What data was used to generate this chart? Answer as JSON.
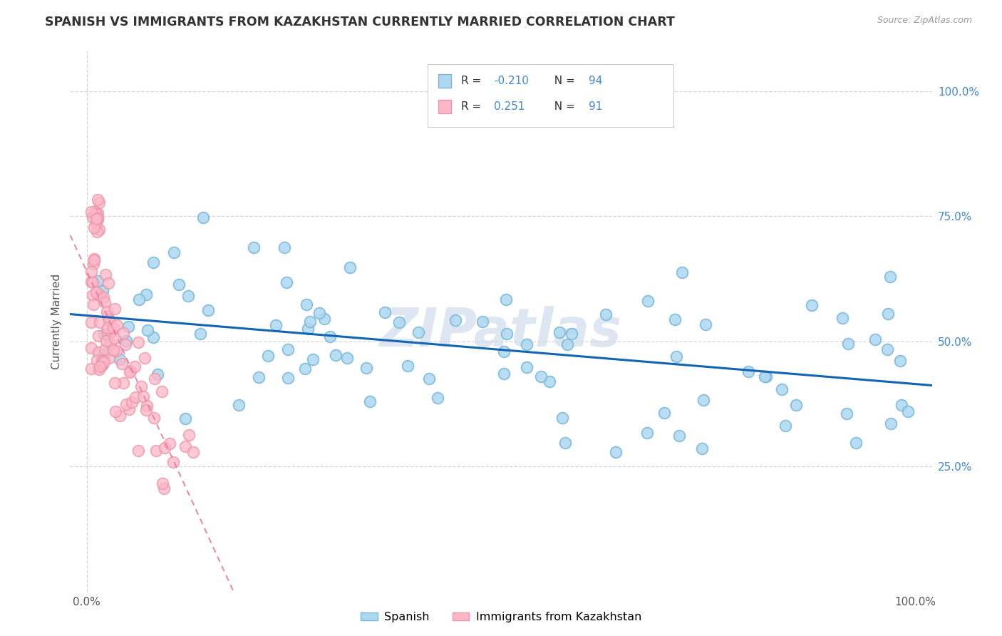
{
  "title": "SPANISH VS IMMIGRANTS FROM KAZAKHSTAN CURRENTLY MARRIED CORRELATION CHART",
  "source": "Source: ZipAtlas.com",
  "ylabel": "Currently Married",
  "watermark": "ZIPatlas",
  "legend_label1": "Spanish",
  "legend_label2": "Immigrants from Kazakhstan",
  "R_blue": -0.21,
  "R_pink": 0.251,
  "N_blue": 94,
  "N_pink": 91,
  "blue_color": "#ADD8F0",
  "blue_edge": "#7AB8D8",
  "pink_color": "#FFB6C8",
  "pink_edge": "#E896A8",
  "trend_blue": "#1464B4",
  "trend_pink": "#E87898",
  "grid_color": "#CCCCCC",
  "title_color": "#333333",
  "source_color": "#999999",
  "tick_color": "#4488CC",
  "ylabel_color": "#555555"
}
